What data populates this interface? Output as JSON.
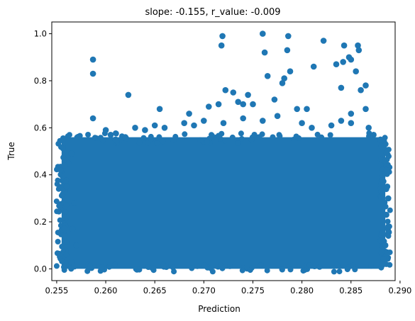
{
  "chart_data": {
    "type": "scatter",
    "title": "slope: -0.155, r_value: -0.009",
    "xlabel": "Prediction",
    "ylabel": "True",
    "xlim": [
      0.2545,
      0.2895
    ],
    "ylim": [
      -0.05,
      1.05
    ],
    "x_ticks": [
      0.255,
      0.26,
      0.265,
      0.27,
      0.275,
      0.28,
      0.285,
      0.29
    ],
    "x_tick_labels": [
      "0.255",
      "0.260",
      "0.265",
      "0.270",
      "0.275",
      "0.280",
      "0.285",
      "0.290"
    ],
    "y_ticks": [
      0.0,
      0.2,
      0.4,
      0.6,
      0.8,
      1.0
    ],
    "y_tick_labels": [
      "0.0",
      "0.2",
      "0.4",
      "0.6",
      "0.8",
      "1.0"
    ],
    "grid": false,
    "marker_color": "#1f77b4",
    "dense_region": {
      "x": [
        0.2555,
        0.2885
      ],
      "y": [
        0.0,
        0.56
      ]
    },
    "series": [
      {
        "points": [
          [
            0.2587,
            0.89
          ],
          [
            0.2587,
            0.83
          ],
          [
            0.2623,
            0.74
          ],
          [
            0.2587,
            0.64
          ],
          [
            0.2655,
            0.68
          ],
          [
            0.2685,
            0.66
          ],
          [
            0.2705,
            0.69
          ],
          [
            0.2715,
            0.7
          ],
          [
            0.2718,
            0.95
          ],
          [
            0.2719,
            0.99
          ],
          [
            0.2722,
            0.76
          ],
          [
            0.273,
            0.75
          ],
          [
            0.2735,
            0.71
          ],
          [
            0.274,
            0.7
          ],
          [
            0.2745,
            0.74
          ],
          [
            0.275,
            0.7
          ],
          [
            0.276,
            1.0
          ],
          [
            0.2762,
            0.92
          ],
          [
            0.2765,
            0.82
          ],
          [
            0.2772,
            0.72
          ],
          [
            0.278,
            0.79
          ],
          [
            0.2782,
            0.81
          ],
          [
            0.2785,
            0.93
          ],
          [
            0.2786,
            0.99
          ],
          [
            0.2788,
            0.84
          ],
          [
            0.2795,
            0.68
          ],
          [
            0.2805,
            0.68
          ],
          [
            0.2812,
            0.86
          ],
          [
            0.2822,
            0.97
          ],
          [
            0.2835,
            0.87
          ],
          [
            0.284,
            0.77
          ],
          [
            0.2842,
            0.88
          ],
          [
            0.2843,
            0.95
          ],
          [
            0.2848,
            0.9
          ],
          [
            0.285,
            0.89
          ],
          [
            0.2855,
            0.84
          ],
          [
            0.2857,
            0.95
          ],
          [
            0.2858,
            0.93
          ],
          [
            0.286,
            0.76
          ],
          [
            0.2865,
            0.78
          ],
          [
            0.2865,
            0.68
          ],
          [
            0.285,
            0.66
          ],
          [
            0.284,
            0.63
          ],
          [
            0.2868,
            0.6
          ],
          [
            0.2873,
            0.57
          ],
          [
            0.288,
            0.55
          ],
          [
            0.2885,
            0.46
          ],
          [
            0.2886,
            0.42
          ],
          [
            0.2887,
            0.35
          ],
          [
            0.2888,
            0.3
          ],
          [
            0.2886,
            0.23
          ],
          [
            0.2888,
            0.18
          ],
          [
            0.2885,
            0.1
          ],
          [
            0.2887,
            0.07
          ],
          [
            0.2882,
            0.02
          ],
          [
            0.2562,
            0.45
          ],
          [
            0.2558,
            0.44
          ],
          [
            0.256,
            0.35
          ],
          [
            0.2565,
            0.49
          ],
          [
            0.2568,
            0.28
          ],
          [
            0.2566,
            0.17
          ],
          [
            0.257,
            0.1
          ],
          [
            0.2565,
            0.03
          ],
          [
            0.2568,
            0.01
          ],
          [
            0.26,
            0.59
          ],
          [
            0.2605,
            0.57
          ],
          [
            0.261,
            0.55
          ],
          [
            0.262,
            0.56
          ],
          [
            0.263,
            0.6
          ],
          [
            0.264,
            0.59
          ],
          [
            0.265,
            0.61
          ],
          [
            0.266,
            0.6
          ],
          [
            0.268,
            0.62
          ],
          [
            0.269,
            0.61
          ],
          [
            0.27,
            0.63
          ],
          [
            0.272,
            0.62
          ],
          [
            0.274,
            0.64
          ],
          [
            0.276,
            0.63
          ],
          [
            0.2775,
            0.65
          ],
          [
            0.28,
            0.62
          ],
          [
            0.281,
            0.6
          ],
          [
            0.283,
            0.61
          ],
          [
            0.285,
            0.62
          ]
        ]
      }
    ]
  }
}
